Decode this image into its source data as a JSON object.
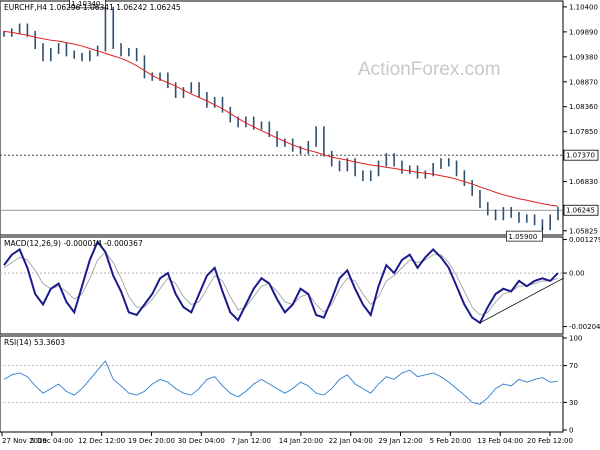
{
  "chart_data": [
    {
      "type": "candlestick",
      "title": "EURCHF,H4  1.06296 1.06341 1.06242 1.06245",
      "watermark": "ActionForex.com",
      "ylim": [
        1.0578,
        1.1048
      ],
      "y_ticks": [
        "1.10400",
        "1.09890",
        "1.09380",
        "1.08870",
        "1.08360",
        "1.07850",
        "1.06830",
        "1.05825"
      ],
      "x_ticks": [
        "27 Nov 2019",
        "5 Dec 04:00",
        "12 Dec 12:00",
        "19 Dec 20:00",
        "30 Dec 04:00",
        "7 Jan 12:00",
        "14 Jan 20:00",
        "22 Jan 04:00",
        "29 Jan 12:00",
        "5 Feb 20:00",
        "13 Feb 04:00",
        "20 Feb 12:00"
      ],
      "series": [
        {
          "name": "price",
          "color": "#2f4f6f",
          "values": [
            1.0985,
            1.099,
            1.1,
            1.0985,
            1.096,
            1.0935,
            1.095,
            1.096,
            1.0945,
            1.094,
            1.0935,
            1.0945,
            1.0955,
            1.1034,
            1.096,
            1.0945,
            1.095,
            1.0935,
            1.09,
            1.0895,
            1.09,
            1.088,
            1.086,
            1.087,
            1.088,
            1.086,
            1.084,
            1.085,
            1.083,
            1.081,
            1.08,
            1.081,
            1.0795,
            1.08,
            1.078,
            1.076,
            1.0765,
            1.075,
            1.0745,
            1.076,
            1.079,
            1.074,
            1.072,
            1.071,
            1.0725,
            1.07,
            1.069,
            1.07,
            1.072,
            1.0735,
            1.072,
            1.0705,
            1.071,
            1.0695,
            1.07,
            1.0715,
            1.0725,
            1.072,
            1.07,
            1.068,
            1.066,
            1.0635,
            1.062,
            1.061,
            1.0625,
            1.0615,
            1.0605,
            1.061,
            1.06,
            1.059,
            1.061,
            1.0625
          ]
        },
        {
          "name": "moving-average",
          "color": "#e02020",
          "values": [
            1.099,
            1.0988,
            1.0985,
            1.0982,
            1.0978,
            1.0975,
            1.0972,
            1.097,
            1.0967,
            1.0964,
            1.096,
            1.0955,
            1.095,
            1.0945,
            1.094,
            1.0935,
            1.0928,
            1.092,
            1.091,
            1.09,
            1.0892,
            1.0885,
            1.0878,
            1.087,
            1.0862,
            1.0855,
            1.0848,
            1.084,
            1.0832,
            1.0822,
            1.0812,
            1.0803,
            1.0795,
            1.0787,
            1.078,
            1.0772,
            1.0765,
            1.0758,
            1.0752,
            1.0747,
            1.0743,
            1.0738,
            1.0733,
            1.073,
            1.0727,
            1.0723,
            1.072,
            1.0717,
            1.0715,
            1.0712,
            1.071,
            1.0707,
            1.0705,
            1.0702,
            1.07,
            1.0698,
            1.0695,
            1.0692,
            1.0688,
            1.0683,
            1.0678,
            1.0672,
            1.0667,
            1.0661,
            1.0656,
            1.0652,
            1.0648,
            1.0645,
            1.0641,
            1.0638,
            1.0635,
            1.0633
          ]
        }
      ],
      "annotations": [
        {
          "label": "1.10340",
          "value": 1.1034,
          "placement": "above"
        },
        {
          "label": "1.05900",
          "value": 1.059,
          "placement": "below"
        }
      ],
      "hlines": [
        {
          "label": "1.07370",
          "value": 1.0737,
          "style": "dashed"
        },
        {
          "label": "1.06245",
          "value": 1.06245,
          "style": "solid"
        }
      ]
    },
    {
      "type": "line",
      "title": "MACD(12,26,9) -0.000014 -0.000367",
      "ylim": [
        -0.00225,
        0.0013
      ],
      "y_ticks": [
        {
          "label": "0.001279",
          "value": 0.001279
        },
        {
          "label": "0.00",
          "value": 0.0
        },
        {
          "label": "-0.002042",
          "value": -0.002042
        }
      ],
      "series": [
        {
          "name": "macd",
          "color": "#1a1a8c",
          "values": [
            0.0003,
            0.0007,
            0.0009,
            0.0002,
            -0.0008,
            -0.0012,
            -0.0006,
            -0.0004,
            -0.0011,
            -0.0015,
            -0.0005,
            0.0005,
            0.0012,
            0.0008,
            -0.0001,
            -0.0007,
            -0.0015,
            -0.0016,
            -0.0012,
            -0.0008,
            -0.0002,
            0.0,
            -0.0008,
            -0.0013,
            -0.0015,
            -0.0008,
            -0.0001,
            0.0002,
            -0.0007,
            -0.0015,
            -0.0018,
            -0.0012,
            -0.0006,
            -0.0002,
            -0.0004,
            -0.001,
            -0.0015,
            -0.0012,
            -0.0006,
            -0.0008,
            -0.0016,
            -0.0017,
            -0.001,
            -0.0002,
            0.0001,
            -0.0006,
            -0.0012,
            -0.0016,
            -0.0005,
            0.0003,
            0.0,
            0.0005,
            0.0007,
            0.0002,
            0.0006,
            0.0009,
            0.0006,
            0.0002,
            -0.0005,
            -0.0012,
            -0.0017,
            -0.0019,
            -0.0013,
            -0.0008,
            -0.0006,
            -0.0007,
            -0.0003,
            -0.0005,
            -0.0003,
            -0.0002,
            -0.0003,
            0.0
          ]
        },
        {
          "name": "signal",
          "color": "#999999",
          "values": [
            0.0002,
            0.0004,
            0.0006,
            0.0005,
            0.0001,
            -0.0004,
            -0.0006,
            -0.0005,
            -0.0007,
            -0.001,
            -0.0008,
            -0.0002,
            0.0005,
            0.0008,
            0.0004,
            -0.0002,
            -0.0009,
            -0.0013,
            -0.0013,
            -0.001,
            -0.0006,
            -0.0002,
            -0.0004,
            -0.0009,
            -0.0012,
            -0.0011,
            -0.0006,
            -0.0001,
            -0.0003,
            -0.0009,
            -0.0014,
            -0.0013,
            -0.0009,
            -0.0005,
            -0.0004,
            -0.0007,
            -0.0011,
            -0.0012,
            -0.0009,
            -0.0008,
            -0.0012,
            -0.0015,
            -0.0012,
            -0.0006,
            -0.0002,
            -0.0003,
            -0.0008,
            -0.0012,
            -0.0009,
            -0.0003,
            -0.0001,
            0.0002,
            0.0005,
            0.0004,
            0.0005,
            0.0007,
            0.0007,
            0.0004,
            -0.0001,
            -0.0007,
            -0.0013,
            -0.0016,
            -0.0015,
            -0.0011,
            -0.0008,
            -0.0007,
            -0.0005,
            -0.0005,
            -0.0004,
            -0.0003,
            -0.0003,
            -0.0002
          ]
        }
      ],
      "trendline": {
        "from_index": 61,
        "from_value": -0.0019,
        "to_index": 71,
        "to_value": -0.0003
      }
    },
    {
      "type": "line",
      "title": "RSI(14) 53.3603",
      "ylim": [
        0,
        100
      ],
      "y_ticks": [
        {
          "label": "100",
          "value": 100
        },
        {
          "label": "70",
          "value": 70
        },
        {
          "label": "30",
          "value": 30
        },
        {
          "label": "0",
          "value": 0
        }
      ],
      "series": [
        {
          "name": "rsi",
          "color": "#2f7fd0",
          "values": [
            55,
            60,
            62,
            58,
            48,
            40,
            45,
            50,
            42,
            38,
            45,
            55,
            65,
            75,
            55,
            48,
            40,
            38,
            42,
            50,
            55,
            52,
            45,
            40,
            38,
            45,
            55,
            58,
            48,
            40,
            36,
            42,
            50,
            55,
            50,
            45,
            40,
            45,
            52,
            48,
            40,
            38,
            45,
            55,
            60,
            50,
            45,
            40,
            50,
            58,
            55,
            62,
            65,
            58,
            60,
            62,
            58,
            52,
            45,
            38,
            30,
            28,
            35,
            45,
            50,
            48,
            55,
            52,
            55,
            57,
            52,
            53
          ]
        }
      ]
    }
  ]
}
